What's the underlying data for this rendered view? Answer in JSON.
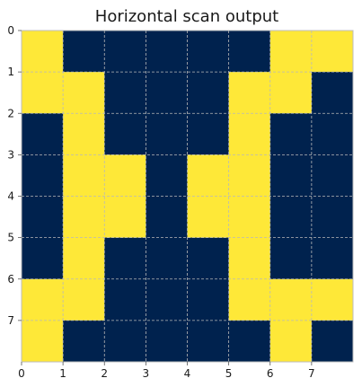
{
  "chart_data": {
    "type": "heatmap",
    "title": "Horizontal scan output",
    "xlabel": "",
    "ylabel": "",
    "x_ticks": [
      "0",
      "1",
      "2",
      "3",
      "4",
      "5",
      "6",
      "7"
    ],
    "y_ticks": [
      "0",
      "1",
      "2",
      "3",
      "4",
      "5",
      "6",
      "7"
    ],
    "xlim": [
      0,
      8
    ],
    "ylim": [
      8,
      0
    ],
    "grid": true,
    "colors": {
      "zero": "#00224e",
      "one": "#fee838",
      "grid": "#b8b8b8",
      "axis": "#bdbdbd"
    },
    "matrix": [
      [
        1,
        0,
        0,
        0,
        0,
        0,
        1,
        1
      ],
      [
        1,
        1,
        0,
        0,
        0,
        1,
        1,
        0
      ],
      [
        0,
        1,
        0,
        0,
        0,
        1,
        0,
        0
      ],
      [
        0,
        1,
        1,
        0,
        1,
        1,
        0,
        0
      ],
      [
        0,
        1,
        1,
        0,
        1,
        1,
        0,
        0
      ],
      [
        0,
        1,
        0,
        0,
        0,
        1,
        0,
        0
      ],
      [
        1,
        1,
        0,
        0,
        0,
        1,
        1,
        1
      ],
      [
        1,
        0,
        0,
        0,
        0,
        0,
        1,
        0
      ]
    ]
  }
}
